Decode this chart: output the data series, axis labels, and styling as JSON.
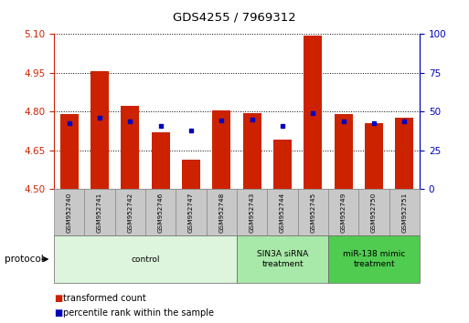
{
  "title": "GDS4255 / 7969312",
  "samples": [
    "GSM952740",
    "GSM952741",
    "GSM952742",
    "GSM952746",
    "GSM952747",
    "GSM952748",
    "GSM952743",
    "GSM952744",
    "GSM952745",
    "GSM952749",
    "GSM952750",
    "GSM952751"
  ],
  "red_values": [
    4.79,
    4.955,
    4.82,
    4.72,
    4.615,
    4.805,
    4.795,
    4.69,
    5.095,
    4.79,
    4.755,
    4.775
  ],
  "blue_values": [
    4.755,
    4.775,
    4.76,
    4.745,
    4.725,
    4.765,
    4.77,
    4.745,
    4.795,
    4.76,
    4.755,
    4.76
  ],
  "ylim_left": [
    4.5,
    5.1
  ],
  "ylim_right": [
    0,
    100
  ],
  "yticks_left": [
    4.5,
    4.65,
    4.8,
    4.95,
    5.1
  ],
  "yticks_right": [
    0,
    25,
    50,
    75,
    100
  ],
  "groups": [
    {
      "label": "control",
      "start": 0,
      "end": 6,
      "color": "#dcf5dc"
    },
    {
      "label": "SIN3A siRNA\ntreatment",
      "start": 6,
      "end": 9,
      "color": "#a8e8a8"
    },
    {
      "label": "miR-138 mimic\ntreatment",
      "start": 9,
      "end": 12,
      "color": "#50cc50"
    }
  ],
  "bar_color": "#cc2200",
  "blue_color": "#0000bb",
  "bar_width": 0.6,
  "protocol_label": "protocol",
  "legend_red": "transformed count",
  "legend_blue": "percentile rank within the sample",
  "bg_color": "#ffffff",
  "tick_label_color_left": "#cc2200",
  "tick_label_color_right": "#0000bb",
  "grid_color": "#000000",
  "sample_box_color": "#c8c8c8",
  "sample_box_edge": "#888888"
}
